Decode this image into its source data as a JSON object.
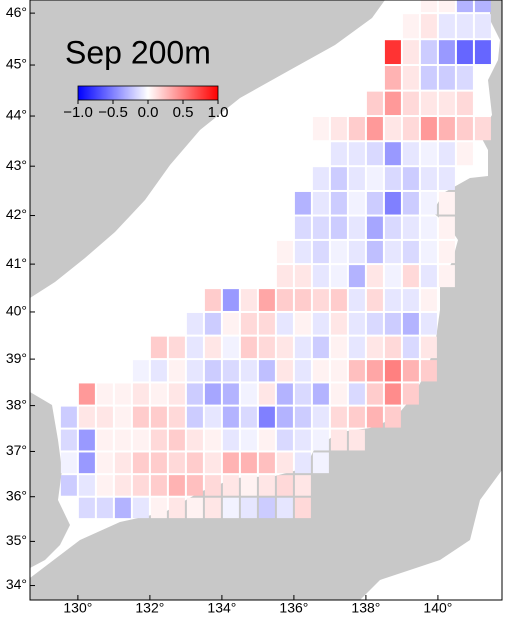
{
  "chart_data": {
    "type": "heatmap",
    "title": "Sep 200m",
    "x": [
      129.75,
      130.25,
      130.75,
      131.25,
      131.75,
      132.25,
      132.75,
      133.25,
      133.75,
      134.25,
      134.75,
      135.25,
      135.75,
      136.25,
      136.75,
      137.25,
      137.75,
      138.25,
      138.75,
      139.25,
      139.75,
      140.25,
      140.75,
      141.25
    ],
    "y": [
      46.25,
      45.75,
      45.25,
      44.75,
      44.25,
      43.75,
      43.25,
      42.75,
      42.25,
      41.75,
      41.25,
      40.75,
      40.25,
      39.75,
      39.25,
      38.75,
      38.25,
      37.75,
      37.25,
      36.75,
      36.25,
      35.75
    ],
    "values": [
      [
        null,
        null,
        null,
        null,
        null,
        null,
        null,
        null,
        null,
        null,
        null,
        null,
        null,
        null,
        null,
        null,
        null,
        null,
        null,
        null,
        0.05,
        0.05,
        -0.3,
        -0.3
      ],
      [
        null,
        null,
        null,
        null,
        null,
        null,
        null,
        null,
        null,
        null,
        null,
        null,
        null,
        null,
        null,
        null,
        null,
        null,
        null,
        0.05,
        0.1,
        -0.1,
        -0.1,
        -0.1
      ],
      [
        null,
        null,
        null,
        null,
        null,
        null,
        null,
        null,
        null,
        null,
        null,
        null,
        null,
        null,
        null,
        null,
        null,
        null,
        0.8,
        0.1,
        -0.2,
        -0.4,
        -0.6,
        -0.6
      ],
      [
        null,
        null,
        null,
        null,
        null,
        null,
        null,
        null,
        null,
        null,
        null,
        null,
        null,
        null,
        null,
        null,
        null,
        null,
        0.3,
        0.1,
        -0.2,
        -0.2,
        -0.15,
        null
      ],
      [
        null,
        null,
        null,
        null,
        null,
        null,
        null,
        null,
        null,
        null,
        null,
        null,
        null,
        null,
        null,
        null,
        null,
        0.2,
        0.4,
        0.15,
        0.1,
        0.1,
        0.15,
        null
      ],
      [
        null,
        null,
        null,
        null,
        null,
        null,
        null,
        null,
        null,
        null,
        null,
        null,
        null,
        null,
        0.05,
        0.1,
        0.2,
        0.4,
        0.1,
        0.15,
        0.4,
        0.3,
        0.2,
        0.15
      ],
      [
        null,
        null,
        null,
        null,
        null,
        null,
        null,
        null,
        null,
        null,
        null,
        null,
        null,
        null,
        null,
        -0.1,
        -0.1,
        -0.15,
        -0.4,
        -0.1,
        -0.05,
        -0.1,
        0.05,
        null
      ],
      [
        null,
        null,
        null,
        null,
        null,
        null,
        null,
        null,
        null,
        null,
        null,
        null,
        null,
        null,
        -0.1,
        -0.2,
        -0.1,
        -0.05,
        -0.15,
        -0.2,
        -0.1,
        -0.1,
        null,
        null
      ],
      [
        null,
        null,
        null,
        null,
        null,
        null,
        null,
        null,
        null,
        null,
        null,
        null,
        null,
        -0.3,
        -0.1,
        -0.2,
        -0.05,
        -0.2,
        -0.5,
        -0.2,
        -0.05,
        0.05,
        null,
        null
      ],
      [
        null,
        null,
        null,
        null,
        null,
        null,
        null,
        null,
        null,
        null,
        null,
        null,
        null,
        -0.15,
        -0.15,
        -0.2,
        -0.1,
        -0.35,
        -0.15,
        -0.1,
        -0.05,
        0.05,
        null,
        null
      ],
      [
        null,
        null,
        null,
        null,
        null,
        null,
        null,
        null,
        null,
        null,
        null,
        null,
        0.05,
        -0.1,
        -0.15,
        -0.05,
        -0.1,
        -0.25,
        -0.1,
        -0.15,
        -0.05,
        0.05,
        null,
        null
      ],
      [
        null,
        null,
        null,
        null,
        null,
        null,
        null,
        null,
        null,
        null,
        null,
        null,
        0.1,
        0.1,
        -0.1,
        -0.05,
        -0.3,
        0.1,
        -0.05,
        0.15,
        -0.1,
        0.05,
        null,
        null
      ],
      [
        null,
        null,
        null,
        null,
        null,
        null,
        null,
        null,
        0.2,
        -0.4,
        0.1,
        0.35,
        0.2,
        0.2,
        0.15,
        0.2,
        -0.1,
        0.15,
        -0.1,
        -0.1,
        0.05,
        null,
        null,
        null
      ],
      [
        null,
        null,
        null,
        null,
        null,
        null,
        null,
        -0.1,
        -0.2,
        0.05,
        0.15,
        0.15,
        -0.1,
        0.05,
        -0.1,
        0.1,
        -0.1,
        -0.15,
        -0.2,
        -0.3,
        -0.1,
        null,
        null,
        null
      ],
      [
        null,
        null,
        null,
        null,
        null,
        0.2,
        0.15,
        -0.1,
        0.1,
        -0.05,
        0.2,
        0.15,
        0.1,
        -0.1,
        -0.2,
        0.05,
        -0.1,
        0.1,
        0.15,
        -0.15,
        0.1,
        null,
        null,
        null
      ],
      [
        null,
        null,
        null,
        null,
        -0.05,
        -0.1,
        0.05,
        -0.1,
        -0.2,
        -0.15,
        -0.1,
        -0.25,
        0.1,
        -0.1,
        0.05,
        0.05,
        0.25,
        0.35,
        0.5,
        0.3,
        0.2,
        null,
        null,
        null
      ],
      [
        null,
        0.4,
        0.05,
        0.05,
        0.1,
        0.05,
        0.1,
        -0.2,
        -0.35,
        -0.3,
        -0.05,
        0.1,
        -0.3,
        -0.15,
        -0.3,
        0.05,
        -0.15,
        0.2,
        0.45,
        0.2,
        null,
        null,
        null,
        null
      ],
      [
        -0.2,
        0.1,
        0.1,
        0.05,
        0.2,
        0.2,
        0.15,
        -0.2,
        -0.1,
        -0.3,
        -0.15,
        -0.5,
        -0.3,
        -0.2,
        -0.1,
        0.15,
        0.2,
        0.3,
        0.2,
        null,
        null,
        null,
        null,
        null
      ],
      [
        -0.15,
        -0.4,
        0.05,
        0.05,
        0.05,
        0.15,
        0.2,
        0.1,
        0.05,
        -0.1,
        -0.05,
        0.05,
        -0.15,
        -0.1,
        -0.05,
        0.1,
        0.1,
        null,
        null,
        null,
        null,
        null,
        null,
        null
      ],
      [
        -0.05,
        -0.4,
        0.05,
        0.1,
        0.2,
        0.2,
        0.15,
        0.2,
        0.1,
        0.3,
        0.3,
        0.25,
        0.1,
        -0.1,
        -0.05,
        null,
        null,
        null,
        null,
        null,
        null,
        null,
        null,
        null
      ],
      [
        -0.2,
        -0.1,
        0.05,
        0.1,
        0.15,
        0.2,
        0.3,
        0.25,
        0.15,
        0.1,
        0.05,
        0.1,
        0.15,
        0.1,
        null,
        null,
        null,
        null,
        null,
        null,
        null,
        null,
        null,
        null
      ],
      [
        null,
        -0.15,
        -0.15,
        -0.3,
        -0.1,
        0.05,
        0.1,
        0.05,
        0.1,
        -0.05,
        -0.1,
        -0.2,
        -0.1,
        0.15,
        null,
        null,
        null,
        null,
        null,
        null,
        null,
        null,
        null,
        null
      ]
    ],
    "xlim": [
      128.67,
      141.78
    ],
    "ylim": [
      33.67,
      46.25
    ],
    "xticks": [
      {
        "value": 130,
        "label": "130°"
      },
      {
        "value": 132,
        "label": "132°"
      },
      {
        "value": 134,
        "label": "134°"
      },
      {
        "value": 136,
        "label": "136°"
      },
      {
        "value": 138,
        "label": "138°"
      },
      {
        "value": 140,
        "label": "140°"
      }
    ],
    "yticks": [
      {
        "value": 34,
        "label": "34°"
      },
      {
        "value": 35,
        "label": "35°"
      },
      {
        "value": 36,
        "label": "36°"
      },
      {
        "value": 37,
        "label": "37°"
      },
      {
        "value": 38,
        "label": "38°"
      },
      {
        "value": 39,
        "label": "39°"
      },
      {
        "value": 40,
        "label": "40°"
      },
      {
        "value": 41,
        "label": "41°"
      },
      {
        "value": 42,
        "label": "42°"
      },
      {
        "value": 43,
        "label": "43°"
      },
      {
        "value": 44,
        "label": "44°"
      },
      {
        "value": 45,
        "label": "45°"
      },
      {
        "value": 46,
        "label": "46°"
      }
    ],
    "colorbar": {
      "clim": [
        -1,
        1
      ],
      "ticks": [
        {
          "value": -1,
          "label": "−1.0"
        },
        {
          "value": -0.5,
          "label": "−0.5"
        },
        {
          "value": 0,
          "label": "0.0"
        },
        {
          "value": 0.5,
          "label": "0.5"
        },
        {
          "value": 1,
          "label": "1.0"
        }
      ]
    },
    "colors": {
      "negative": "#0000ff",
      "zero": "#ffffff",
      "positive": "#ff0000"
    },
    "land_color": "#c8c8c8"
  }
}
